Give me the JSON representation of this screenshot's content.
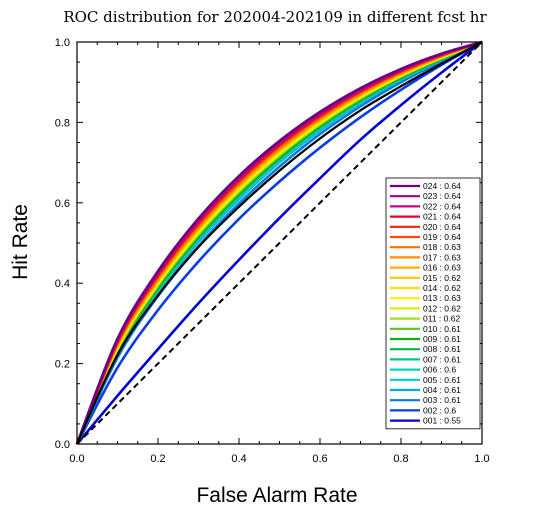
{
  "chart_data": {
    "type": "line",
    "title": "ROC distribution for 202004-202109 in different fcst hr",
    "xlabel": "False Alarm Rate",
    "ylabel": "Hit Rate",
    "xlim": [
      0,
      1
    ],
    "ylim": [
      0,
      1
    ],
    "xticks": [
      "0.0",
      "0.2",
      "0.4",
      "0.6",
      "0.8",
      "1.0"
    ],
    "yticks": [
      "0.0",
      "0.2",
      "0.4",
      "0.6",
      "0.8",
      "1.0"
    ],
    "grid": false,
    "legend_position": "right",
    "reference_line": {
      "style": "dashed",
      "color": "#000000",
      "x": [
        0,
        1
      ],
      "y": [
        0,
        1
      ]
    },
    "series": [
      {
        "name": "024 : 0.64",
        "color": "#6a0080",
        "points": [
          [
            0,
            0
          ],
          [
            0.1,
            0.262
          ],
          [
            0.2,
            0.43
          ],
          [
            0.3,
            0.561
          ],
          [
            0.4,
            0.667
          ],
          [
            0.5,
            0.754
          ],
          [
            0.6,
            0.826
          ],
          [
            0.7,
            0.885
          ],
          [
            0.8,
            0.933
          ],
          [
            0.9,
            0.971
          ],
          [
            1,
            1
          ]
        ]
      },
      {
        "name": "023 : 0.64",
        "color": "#a0008c",
        "points": [
          [
            0,
            0
          ],
          [
            0.1,
            0.26
          ],
          [
            0.2,
            0.427
          ],
          [
            0.3,
            0.558
          ],
          [
            0.4,
            0.664
          ],
          [
            0.5,
            0.751
          ],
          [
            0.6,
            0.823
          ],
          [
            0.7,
            0.883
          ],
          [
            0.8,
            0.931
          ],
          [
            0.9,
            0.97
          ],
          [
            1,
            1
          ]
        ]
      },
      {
        "name": "022 : 0.64",
        "color": "#d0008a",
        "points": [
          [
            0,
            0
          ],
          [
            0.1,
            0.258
          ],
          [
            0.2,
            0.425
          ],
          [
            0.3,
            0.555
          ],
          [
            0.4,
            0.661
          ],
          [
            0.5,
            0.749
          ],
          [
            0.6,
            0.821
          ],
          [
            0.7,
            0.881
          ],
          [
            0.8,
            0.93
          ],
          [
            0.9,
            0.969
          ],
          [
            1,
            1
          ]
        ]
      },
      {
        "name": "021 : 0.64",
        "color": "#e8002a",
        "points": [
          [
            0,
            0
          ],
          [
            0.1,
            0.256
          ],
          [
            0.2,
            0.422
          ],
          [
            0.3,
            0.552
          ],
          [
            0.4,
            0.658
          ],
          [
            0.5,
            0.746
          ],
          [
            0.6,
            0.819
          ],
          [
            0.7,
            0.879
          ],
          [
            0.8,
            0.929
          ],
          [
            0.9,
            0.969
          ],
          [
            1,
            1
          ]
        ]
      },
      {
        "name": "020 : 0.64",
        "color": "#ff1a00",
        "points": [
          [
            0,
            0
          ],
          [
            0.1,
            0.254
          ],
          [
            0.2,
            0.419
          ],
          [
            0.3,
            0.549
          ],
          [
            0.4,
            0.655
          ],
          [
            0.5,
            0.743
          ],
          [
            0.6,
            0.816
          ],
          [
            0.7,
            0.877
          ],
          [
            0.8,
            0.927
          ],
          [
            0.9,
            0.968
          ],
          [
            1,
            1
          ]
        ]
      },
      {
        "name": "019 : 0.64",
        "color": "#ff4a00",
        "points": [
          [
            0,
            0
          ],
          [
            0.1,
            0.252
          ],
          [
            0.2,
            0.417
          ],
          [
            0.3,
            0.546
          ],
          [
            0.4,
            0.652
          ],
          [
            0.5,
            0.741
          ],
          [
            0.6,
            0.814
          ],
          [
            0.7,
            0.876
          ],
          [
            0.8,
            0.926
          ],
          [
            0.9,
            0.967
          ],
          [
            1,
            1
          ]
        ]
      },
      {
        "name": "018 : 0.63",
        "color": "#ff6e00",
        "points": [
          [
            0,
            0
          ],
          [
            0.1,
            0.25
          ],
          [
            0.2,
            0.414
          ],
          [
            0.3,
            0.543
          ],
          [
            0.4,
            0.649
          ],
          [
            0.5,
            0.738
          ],
          [
            0.6,
            0.812
          ],
          [
            0.7,
            0.874
          ],
          [
            0.8,
            0.924
          ],
          [
            0.9,
            0.966
          ],
          [
            1,
            1
          ]
        ]
      },
      {
        "name": "017 : 0.63",
        "color": "#ff8c00",
        "points": [
          [
            0,
            0
          ],
          [
            0.1,
            0.248
          ],
          [
            0.2,
            0.411
          ],
          [
            0.3,
            0.54
          ],
          [
            0.4,
            0.647
          ],
          [
            0.5,
            0.735
          ],
          [
            0.6,
            0.81
          ],
          [
            0.7,
            0.872
          ],
          [
            0.8,
            0.923
          ],
          [
            0.9,
            0.965
          ],
          [
            1,
            1
          ]
        ]
      },
      {
        "name": "016 : 0.63",
        "color": "#ffa800",
        "points": [
          [
            0,
            0
          ],
          [
            0.1,
            0.246
          ],
          [
            0.2,
            0.409
          ],
          [
            0.3,
            0.537
          ],
          [
            0.4,
            0.644
          ],
          [
            0.5,
            0.733
          ],
          [
            0.6,
            0.807
          ],
          [
            0.7,
            0.87
          ],
          [
            0.8,
            0.922
          ],
          [
            0.9,
            0.964
          ],
          [
            1,
            1
          ]
        ]
      },
      {
        "name": "015 : 0.62",
        "color": "#ffc400",
        "points": [
          [
            0,
            0
          ],
          [
            0.1,
            0.244
          ],
          [
            0.2,
            0.406
          ],
          [
            0.3,
            0.535
          ],
          [
            0.4,
            0.641
          ],
          [
            0.5,
            0.73
          ],
          [
            0.6,
            0.805
          ],
          [
            0.7,
            0.868
          ],
          [
            0.8,
            0.92
          ],
          [
            0.9,
            0.964
          ],
          [
            1,
            1
          ]
        ]
      },
      {
        "name": "014 : 0.62",
        "color": "#ffd800",
        "points": [
          [
            0,
            0
          ],
          [
            0.1,
            0.242
          ],
          [
            0.2,
            0.404
          ],
          [
            0.3,
            0.532
          ],
          [
            0.4,
            0.638
          ],
          [
            0.5,
            0.727
          ],
          [
            0.6,
            0.803
          ],
          [
            0.7,
            0.866
          ],
          [
            0.8,
            0.919
          ],
          [
            0.9,
            0.963
          ],
          [
            1,
            1
          ]
        ]
      },
      {
        "name": "013 : 0.63",
        "color": "#fff000",
        "points": [
          [
            0,
            0
          ],
          [
            0.1,
            0.24
          ],
          [
            0.2,
            0.401
          ],
          [
            0.3,
            0.529
          ],
          [
            0.4,
            0.635
          ],
          [
            0.5,
            0.725
          ],
          [
            0.6,
            0.801
          ],
          [
            0.7,
            0.864
          ],
          [
            0.8,
            0.918
          ],
          [
            0.9,
            0.962
          ],
          [
            1,
            1
          ]
        ]
      },
      {
        "name": "012 : 0.62",
        "color": "#d8f000",
        "points": [
          [
            0,
            0
          ],
          [
            0.1,
            0.238
          ],
          [
            0.2,
            0.398
          ],
          [
            0.3,
            0.526
          ],
          [
            0.4,
            0.632
          ],
          [
            0.5,
            0.722
          ],
          [
            0.6,
            0.798
          ],
          [
            0.7,
            0.863
          ],
          [
            0.8,
            0.916
          ],
          [
            0.9,
            0.961
          ],
          [
            1,
            1
          ]
        ]
      },
      {
        "name": "011 : 0.62",
        "color": "#9ee01a",
        "points": [
          [
            0,
            0
          ],
          [
            0.1,
            0.236
          ],
          [
            0.2,
            0.396
          ],
          [
            0.3,
            0.523
          ],
          [
            0.4,
            0.629
          ],
          [
            0.5,
            0.719
          ],
          [
            0.6,
            0.796
          ],
          [
            0.7,
            0.861
          ],
          [
            0.8,
            0.915
          ],
          [
            0.9,
            0.96
          ],
          [
            1,
            1
          ]
        ]
      },
      {
        "name": "010 : 0.61",
        "color": "#58c81e",
        "points": [
          [
            0,
            0
          ],
          [
            0.1,
            0.234
          ],
          [
            0.2,
            0.393
          ],
          [
            0.3,
            0.52
          ],
          [
            0.4,
            0.626
          ],
          [
            0.5,
            0.717
          ],
          [
            0.6,
            0.794
          ],
          [
            0.7,
            0.859
          ],
          [
            0.8,
            0.914
          ],
          [
            0.9,
            0.96
          ],
          [
            1,
            1
          ]
        ]
      },
      {
        "name": "009 : 0.61",
        "color": "#1aa81a",
        "points": [
          [
            0,
            0
          ],
          [
            0.1,
            0.232
          ],
          [
            0.2,
            0.39
          ],
          [
            0.3,
            0.517
          ],
          [
            0.4,
            0.623
          ],
          [
            0.5,
            0.714
          ],
          [
            0.6,
            0.792
          ],
          [
            0.7,
            0.857
          ],
          [
            0.8,
            0.912
          ],
          [
            0.9,
            0.959
          ],
          [
            1,
            1
          ]
        ]
      },
      {
        "name": "008 : 0.61",
        "color": "#00b450",
        "points": [
          [
            0,
            0
          ],
          [
            0.1,
            0.23
          ],
          [
            0.2,
            0.388
          ],
          [
            0.3,
            0.514
          ],
          [
            0.4,
            0.621
          ],
          [
            0.5,
            0.711
          ],
          [
            0.6,
            0.789
          ],
          [
            0.7,
            0.855
          ],
          [
            0.8,
            0.911
          ],
          [
            0.9,
            0.958
          ],
          [
            1,
            1
          ]
        ]
      },
      {
        "name": "007 : 0.61",
        "color": "#00c88c",
        "points": [
          [
            0,
            0
          ],
          [
            0.1,
            0.228
          ],
          [
            0.2,
            0.385
          ],
          [
            0.3,
            0.511
          ],
          [
            0.4,
            0.618
          ],
          [
            0.5,
            0.709
          ],
          [
            0.6,
            0.787
          ],
          [
            0.7,
            0.853
          ],
          [
            0.8,
            0.91
          ],
          [
            0.9,
            0.957
          ],
          [
            1,
            1
          ]
        ]
      },
      {
        "name": "006 : 0.6",
        "color": "#00d2b4",
        "points": [
          [
            0,
            0
          ],
          [
            0.1,
            0.226
          ],
          [
            0.2,
            0.382
          ],
          [
            0.3,
            0.509
          ],
          [
            0.4,
            0.615
          ],
          [
            0.5,
            0.706
          ],
          [
            0.6,
            0.785
          ],
          [
            0.7,
            0.851
          ],
          [
            0.8,
            0.908
          ],
          [
            0.9,
            0.956
          ],
          [
            1,
            1
          ]
        ]
      },
      {
        "name": "005 : 0.61",
        "color": "#00c8d2",
        "points": [
          [
            0,
            0
          ],
          [
            0.1,
            0.224
          ],
          [
            0.2,
            0.38
          ],
          [
            0.3,
            0.506
          ],
          [
            0.4,
            0.612
          ],
          [
            0.5,
            0.703
          ],
          [
            0.6,
            0.783
          ],
          [
            0.7,
            0.85
          ],
          [
            0.8,
            0.907
          ],
          [
            0.9,
            0.956
          ],
          [
            1,
            1
          ]
        ]
      },
      {
        "name": "004 : 0.61",
        "color": "#00a8e6",
        "points": [
          [
            0,
            0
          ],
          [
            0.1,
            0.222
          ],
          [
            0.2,
            0.377
          ],
          [
            0.3,
            0.503
          ],
          [
            0.4,
            0.609
          ],
          [
            0.5,
            0.701
          ],
          [
            0.6,
            0.78
          ],
          [
            0.7,
            0.848
          ],
          [
            0.8,
            0.906
          ],
          [
            0.9,
            0.955
          ],
          [
            1,
            1
          ]
        ]
      },
      {
        "name": "003 : 0.61",
        "color": "#0a78dc",
        "points": [
          [
            0,
            0
          ],
          [
            0.1,
            0.215
          ],
          [
            0.2,
            0.368
          ],
          [
            0.3,
            0.492
          ],
          [
            0.4,
            0.598
          ],
          [
            0.5,
            0.69
          ],
          [
            0.6,
            0.771
          ],
          [
            0.7,
            0.84
          ],
          [
            0.8,
            0.9
          ],
          [
            0.9,
            0.952
          ],
          [
            1,
            1
          ]
        ]
      },
      {
        "name": "002 : 0.6",
        "color": "#0a3ce6",
        "points": [
          [
            0,
            0
          ],
          [
            0.1,
            0.19
          ],
          [
            0.2,
            0.333
          ],
          [
            0.3,
            0.454
          ],
          [
            0.4,
            0.56
          ],
          [
            0.5,
            0.653
          ],
          [
            0.6,
            0.737
          ],
          [
            0.7,
            0.813
          ],
          [
            0.8,
            0.881
          ],
          [
            0.9,
            0.943
          ],
          [
            1,
            1
          ]
        ]
      },
      {
        "name": "001 : 0.55",
        "color": "#0000d2",
        "points": [
          [
            0,
            0
          ],
          [
            0.1,
            0.12
          ],
          [
            0.2,
            0.236
          ],
          [
            0.3,
            0.35
          ],
          [
            0.4,
            0.458
          ],
          [
            0.5,
            0.562
          ],
          [
            0.6,
            0.661
          ],
          [
            0.7,
            0.757
          ],
          [
            0.8,
            0.843
          ],
          [
            0.9,
            0.924
          ],
          [
            1,
            1
          ]
        ]
      }
    ],
    "unlabeled_series": [
      {
        "color": "#000000",
        "points": [
          [
            0,
            0
          ],
          [
            0.1,
            0.222
          ],
          [
            0.2,
            0.37
          ],
          [
            0.3,
            0.49
          ],
          [
            0.4,
            0.59
          ],
          [
            0.5,
            0.68
          ],
          [
            0.6,
            0.76
          ],
          [
            0.7,
            0.83
          ],
          [
            0.8,
            0.89
          ],
          [
            0.9,
            0.946
          ],
          [
            1,
            1
          ]
        ]
      }
    ]
  }
}
